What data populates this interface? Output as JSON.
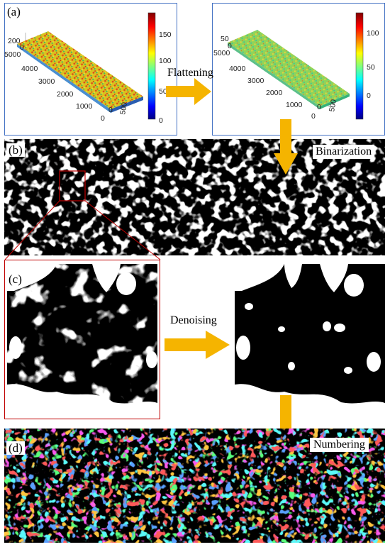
{
  "panels": {
    "a": {
      "tag": "(a)"
    },
    "b": {
      "tag": "(b)"
    },
    "c": {
      "tag": "(c)"
    },
    "d": {
      "tag": "(d)"
    }
  },
  "steps": {
    "flattening": "Flattening",
    "binarization": "Binarization",
    "denoising": "Denoising",
    "numbering": "Numbering"
  },
  "plot_raw": {
    "z_ticks": [
      "200",
      "0"
    ],
    "y_ticks": [
      "5000",
      "4000",
      "3000",
      "2000",
      "1000",
      "0"
    ],
    "x_ticks": [
      "0",
      "500"
    ],
    "colorbar_ticks": [
      "150",
      "100",
      "50",
      "0"
    ]
  },
  "plot_flat": {
    "z_ticks": [
      "50",
      "0"
    ],
    "y_ticks": [
      "5000",
      "4000",
      "3000",
      "2000",
      "1000",
      "0"
    ],
    "x_ticks": [
      "0",
      "500"
    ],
    "colorbar_ticks": [
      "100",
      "50",
      "0"
    ]
  },
  "colors": {
    "frame_blue": "#4472c4",
    "frame_red": "#c00000",
    "arrow": "#f5b400",
    "jet_dark_red": "#800000",
    "jet_red": "#ff0000",
    "jet_yellow": "#ffff00",
    "jet_cyan": "#00ffff",
    "jet_blue": "#0000ff",
    "jet_dark_blue": "#000080"
  }
}
